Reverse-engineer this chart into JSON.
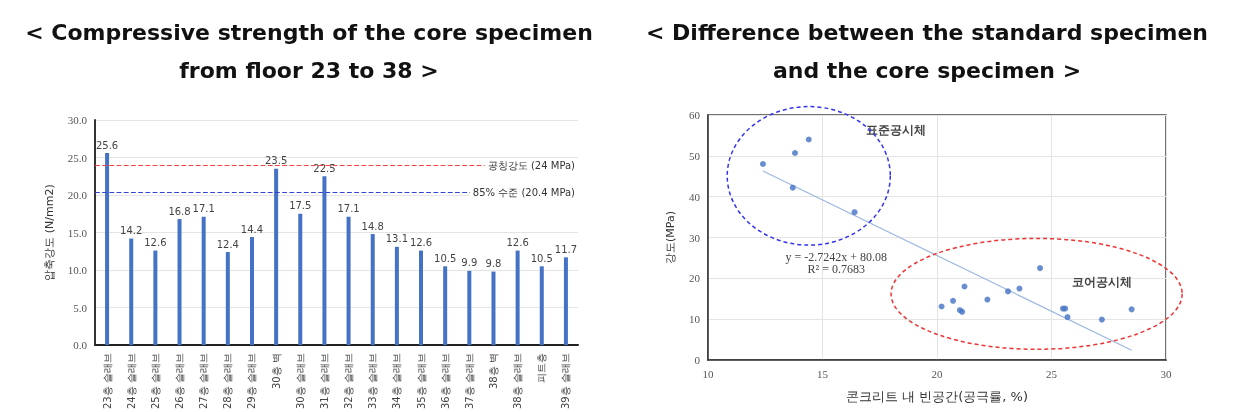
{
  "chart_data": [
    {
      "type": "bar",
      "title": "< Compressive strength of the core specimen from floor 23 to 38 >",
      "ylabel": "압축강도 (N/mm2)",
      "categories": [
        "23층 슬래브",
        "24층 슬래브",
        "25층 슬래브",
        "26층 슬래브",
        "27층 슬래브",
        "28층 슬래브",
        "29층 슬래브",
        "30층 벽",
        "30층 슬래브",
        "31층 슬래브",
        "32층 슬래브",
        "33층 슬래브",
        "34층 슬래브",
        "35층 슬래브",
        "36층 슬래브",
        "37층 슬래브",
        "38층 벽",
        "38층 슬래브",
        "피트층",
        "39층 슬래브"
      ],
      "values": [
        25.6,
        14.2,
        12.6,
        16.8,
        17.1,
        12.4,
        14.4,
        23.5,
        17.5,
        22.5,
        17.1,
        14.8,
        13.1,
        12.6,
        10.5,
        9.9,
        9.8,
        12.6,
        10.5,
        11.7
      ],
      "color": "#4472c4",
      "data_labels": true,
      "ylim": [
        0,
        30
      ],
      "yticks": [
        {
          "value": 0,
          "label": "0.0"
        },
        {
          "value": 5,
          "label": "5.0"
        },
        {
          "value": 10,
          "label": "10.0"
        },
        {
          "value": 15,
          "label": "15.0"
        },
        {
          "value": 20,
          "label": "20.0"
        },
        {
          "value": 25,
          "label": "25.0"
        },
        {
          "value": 30,
          "label": "30.0"
        }
      ],
      "ref_lines": [
        {
          "axis": "y",
          "value": 24,
          "label": "공칭강도 (24 MPa)",
          "color": "#ff4040",
          "line_style": "dashed"
        },
        {
          "axis": "y",
          "value": 20.4,
          "label": "85% 수준 (20.4 MPa)",
          "color": "#3344dd",
          "line_style": "dashed"
        }
      ],
      "grid": "y"
    },
    {
      "type": "scatter",
      "title": "< Difference between the standard specimen and the core specimen >",
      "xlabel": "콘크리트 내 빈공간(공극률, %)",
      "ylabel": "강도(MPa)",
      "series": [
        {
          "color": "#4472c4",
          "x": [
            12.4,
            13.8,
            13.7,
            14.4,
            16.4
          ],
          "values": [
            48,
            50.7,
            42.2,
            54,
            36.2
          ]
        },
        {
          "color": "#4472c4",
          "x": [
            20.2,
            20.7,
            21.0,
            21.1,
            21.2,
            22.2,
            23.1,
            23.6,
            24.5,
            25.5,
            25.6,
            25.7,
            27.2,
            28.5
          ],
          "values": [
            13.1,
            14.5,
            12.2,
            11.8,
            18,
            14.8,
            16.8,
            17.5,
            22.5,
            12.6,
            12.6,
            10.5,
            9.9,
            12.4
          ]
        },
        {
          "type": "line",
          "color": "#9db7e0",
          "marker": "none",
          "x": [
            12.4,
            28.5
          ],
          "values": [
            46.3,
            2.4
          ]
        }
      ],
      "annotations": [
        "표준공시체",
        "코어공시체",
        "y = -2.7242x + 80.08",
        "R² = 0.7683"
      ],
      "xlim": [
        10,
        30
      ],
      "xticks": [
        10,
        15,
        20,
        25,
        30
      ],
      "ylim": [
        0,
        60
      ],
      "yticks": [
        0,
        10,
        20,
        30,
        40,
        50,
        60
      ],
      "marker": "circle",
      "grid": true
    }
  ]
}
